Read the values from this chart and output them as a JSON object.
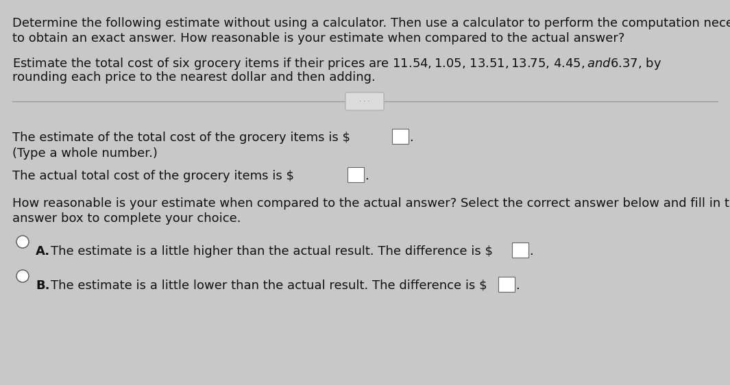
{
  "bg_color": "#c8c8c8",
  "content_bg": "#dcdcdc",
  "text_color": "#111111",
  "line1": "Determine the following estimate without using a calculator. Then use a calculator to perform the computation necessary",
  "line2": "to obtain an exact answer. How reasonable is your estimate when compared to the actual answer?",
  "line3": "Estimate the total cost of six grocery items if their prices are $11.54, $1.05, $13.51, $13.75, $4.45, and $6.37, by",
  "line4": "rounding each price to the nearest dollar and then adding.",
  "estimate_line": "The estimate of the total cost of the grocery items is $",
  "type_note": "(Type a whole number.)",
  "actual_line": "The actual total cost of the grocery items is $",
  "how_reasonable1": "How reasonable is your estimate when compared to the actual answer? Select the correct answer below and fill in the",
  "how_reasonable2": "answer box to complete your choice.",
  "option_a_label": "A.",
  "option_a_text": "The estimate is a little higher than the actual result. The difference is $",
  "option_b_label": "B.",
  "option_b_text": "The estimate is a little lower than the actual result. The difference is $",
  "font_size_main": 13.0
}
